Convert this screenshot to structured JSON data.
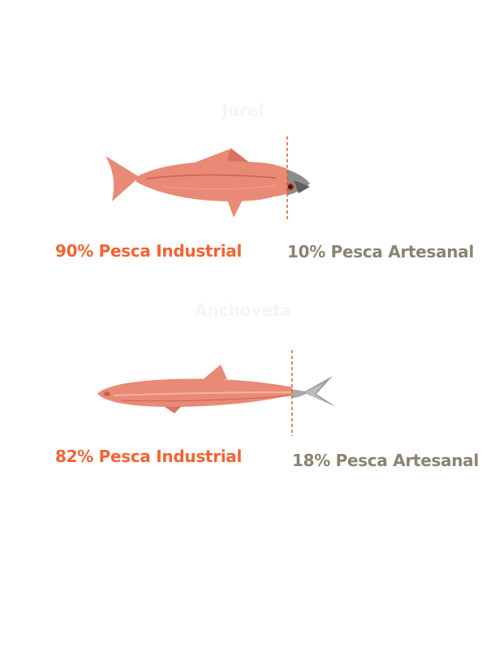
{
  "colors": {
    "industrial": "#f26434",
    "artesanal": "#8a8470",
    "fish_body": "#e98a76",
    "fish_dark": "#c9624f",
    "fish_gray": "#9a9a9a",
    "divider": "#e25a2c",
    "title": "#f4f4f9"
  },
  "chart_data": [
    {
      "type": "bar",
      "title": "Jurel",
      "categories": [
        "Pesca Industrial",
        "Pesca Artesanal"
      ],
      "values": [
        90,
        10
      ],
      "unit": "%",
      "labels": {
        "industrial_value": "90%",
        "industrial_text": " Pesca Industrial",
        "artesanal_value": "10%",
        "artesanal_text": " Pesca Artesanal"
      }
    },
    {
      "type": "bar",
      "title": "Anchoveta",
      "categories": [
        "Pesca Industrial",
        "Pesca Artesanal"
      ],
      "values": [
        82,
        18
      ],
      "unit": "%",
      "labels": {
        "industrial_value": "82%",
        "industrial_text": " Pesca Industrial",
        "artesanal_value": "18%",
        "artesanal_text": " Pesca Artesanal"
      }
    }
  ]
}
